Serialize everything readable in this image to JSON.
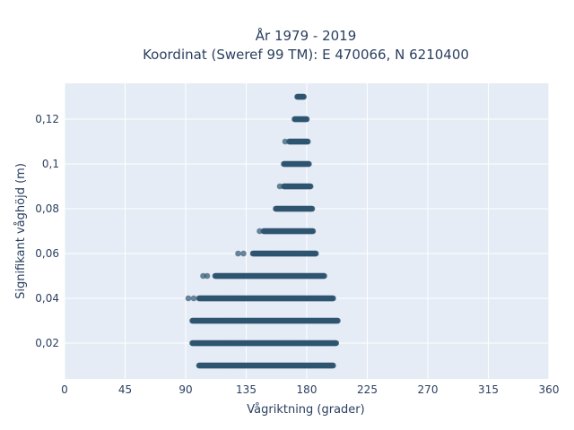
{
  "title": {
    "line1": "År 1979 - 2019",
    "line2": "Koordinat (Sweref 99 TM): E 470066, N 6210400"
  },
  "chart_data": {
    "type": "scatter",
    "title": "År 1979 - 2019 Koordinat (Sweref 99 TM): E 470066, N 6210400",
    "xlabel": "Vågriktning (grader)",
    "ylabel": "Signifikant våghöjd (m)",
    "xlim": [
      0,
      360
    ],
    "ylim": [
      0.004,
      0.136
    ],
    "x_ticks": [
      0,
      45,
      90,
      135,
      180,
      225,
      270,
      315,
      360
    ],
    "x_tick_labels": [
      "0",
      "45",
      "90",
      "135",
      "180",
      "225",
      "270",
      "315",
      "360"
    ],
    "y_ticks": [
      0.02,
      0.04,
      0.06,
      0.08,
      0.1,
      0.12
    ],
    "y_tick_labels": [
      "0,02",
      "0,04",
      "0,06",
      "0,08",
      "0,1",
      "0,12"
    ],
    "grid": true,
    "marker_color": "#2e5570",
    "plot_background": "#e5ecf6",
    "bands": [
      {
        "height": 0.01,
        "x_min": 93,
        "x_max": 200,
        "outliers": [],
        "dense_ranges": [
          [
            100,
            200
          ]
        ]
      },
      {
        "height": 0.02,
        "x_min": 93,
        "x_max": 202,
        "outliers": [],
        "dense_ranges": [
          [
            95,
            202
          ]
        ]
      },
      {
        "height": 0.03,
        "x_min": 93,
        "x_max": 203,
        "outliers": [],
        "dense_ranges": [
          [
            95,
            203
          ]
        ]
      },
      {
        "height": 0.04,
        "x_min": 92,
        "x_max": 200,
        "outliers": [
          92,
          96
        ],
        "dense_ranges": [
          [
            100,
            200
          ]
        ]
      },
      {
        "height": 0.05,
        "x_min": 103,
        "x_max": 193,
        "outliers": [
          103,
          106
        ],
        "dense_ranges": [
          [
            112,
            193
          ]
        ]
      },
      {
        "height": 0.06,
        "x_min": 129,
        "x_max": 187,
        "outliers": [
          129,
          133
        ],
        "dense_ranges": [
          [
            140,
            187
          ]
        ]
      },
      {
        "height": 0.07,
        "x_min": 145,
        "x_max": 185,
        "outliers": [
          145
        ],
        "dense_ranges": [
          [
            148,
            185
          ]
        ]
      },
      {
        "height": 0.08,
        "x_min": 155,
        "x_max": 184,
        "outliers": [],
        "dense_ranges": [
          [
            157,
            184
          ]
        ]
      },
      {
        "height": 0.09,
        "x_min": 160,
        "x_max": 183,
        "outliers": [
          160
        ],
        "dense_ranges": [
          [
            163,
            183
          ]
        ]
      },
      {
        "height": 0.1,
        "x_min": 162,
        "x_max": 182,
        "outliers": [],
        "dense_ranges": [
          [
            163,
            182
          ]
        ]
      },
      {
        "height": 0.11,
        "x_min": 164,
        "x_max": 181,
        "outliers": [
          164
        ],
        "dense_ranges": [
          [
            167,
            181
          ]
        ]
      },
      {
        "height": 0.12,
        "x_min": 171,
        "x_max": 180,
        "outliers": [],
        "dense_ranges": [
          [
            171,
            180
          ]
        ]
      },
      {
        "height": 0.13,
        "x_min": 173,
        "x_max": 178,
        "outliers": [],
        "dense_ranges": [
          [
            173,
            178
          ]
        ]
      }
    ]
  }
}
